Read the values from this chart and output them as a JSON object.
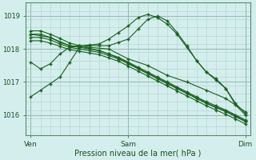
{
  "xlabel": "Pression niveau de la mer( hPa )",
  "bg_color": "#d4eeed",
  "grid_minor_color": "#b8d8d4",
  "grid_major_color": "#9abcb8",
  "line_color": "#1a6020",
  "tick_color": "#1a5020",
  "x_tick_labels": [
    "Ven",
    "Sam",
    "Dim"
  ],
  "x_tick_pos": [
    0,
    10,
    22
  ],
  "ylim": [
    1015.4,
    1019.4
  ],
  "yticks": [
    1016,
    1017,
    1018,
    1019
  ],
  "n_points": 23,
  "lines": [
    {
      "x": [
        0,
        1,
        2,
        3,
        4,
        5,
        6,
        7,
        8,
        9,
        10,
        11,
        12,
        13,
        14,
        15,
        16,
        17,
        18,
        19,
        20,
        21,
        22
      ],
      "y": [
        1016.55,
        1016.75,
        1016.95,
        1017.15,
        1017.6,
        1018.05,
        1018.1,
        1018.1,
        1018.1,
        1018.2,
        1018.3,
        1018.6,
        1018.9,
        1019.0,
        1018.85,
        1018.5,
        1018.1,
        1017.65,
        1017.3,
        1017.1,
        1016.8,
        1016.35,
        1016.05
      ]
    },
    {
      "x": [
        0,
        1,
        2,
        3,
        4,
        5,
        6,
        7,
        8,
        9,
        10,
        11,
        12,
        13,
        14,
        15,
        16,
        17,
        18,
        19,
        20,
        21,
        22
      ],
      "y": [
        1018.45,
        1018.45,
        1018.35,
        1018.2,
        1018.1,
        1018.05,
        1018.0,
        1017.95,
        1017.85,
        1017.75,
        1017.6,
        1017.45,
        1017.3,
        1017.15,
        1017.0,
        1016.85,
        1016.7,
        1016.55,
        1016.4,
        1016.28,
        1016.15,
        1016.0,
        1015.85
      ]
    },
    {
      "x": [
        0,
        1,
        2,
        3,
        4,
        5,
        6,
        7,
        8,
        9,
        10,
        11,
        12,
        13,
        14,
        15,
        16,
        17,
        18,
        19,
        20,
        21,
        22
      ],
      "y": [
        1018.35,
        1018.35,
        1018.28,
        1018.15,
        1018.05,
        1018.0,
        1017.95,
        1017.9,
        1017.8,
        1017.7,
        1017.55,
        1017.4,
        1017.25,
        1017.1,
        1016.95,
        1016.8,
        1016.65,
        1016.5,
        1016.35,
        1016.22,
        1016.1,
        1015.95,
        1015.8
      ]
    },
    {
      "x": [
        0,
        1,
        2,
        3,
        4,
        5,
        6,
        7,
        8,
        9,
        10,
        11,
        12,
        13,
        14,
        15,
        16,
        17,
        18,
        19,
        20,
        21,
        22
      ],
      "y": [
        1018.25,
        1018.25,
        1018.18,
        1018.08,
        1017.98,
        1017.93,
        1017.88,
        1017.83,
        1017.73,
        1017.63,
        1017.48,
        1017.33,
        1017.18,
        1017.03,
        1016.88,
        1016.73,
        1016.58,
        1016.43,
        1016.28,
        1016.15,
        1016.02,
        1015.88,
        1015.73
      ]
    },
    {
      "x": [
        0,
        1,
        2,
        3,
        4,
        5,
        6,
        7,
        8,
        9,
        10,
        11,
        12,
        13,
        14,
        15,
        16,
        17,
        18,
        19,
        20,
        21,
        22
      ],
      "y": [
        1018.55,
        1018.55,
        1018.45,
        1018.32,
        1018.18,
        1018.1,
        1018.02,
        1017.95,
        1017.85,
        1017.72,
        1017.58,
        1017.42,
        1017.27,
        1017.12,
        1016.97,
        1016.82,
        1016.67,
        1016.52,
        1016.37,
        1016.24,
        1016.12,
        1015.98,
        1015.82
      ]
    },
    {
      "x": [
        0,
        1,
        2,
        3,
        4,
        5,
        6,
        7,
        8,
        9,
        10,
        11,
        12,
        13,
        14,
        15,
        16,
        17,
        18,
        19,
        20,
        21,
        22
      ],
      "y": [
        1017.6,
        1017.4,
        1017.55,
        1017.85,
        1018.05,
        1018.1,
        1018.12,
        1018.15,
        1018.3,
        1018.5,
        1018.7,
        1018.95,
        1019.05,
        1018.95,
        1018.75,
        1018.45,
        1018.05,
        1017.65,
        1017.3,
        1017.05,
        1016.8,
        1016.3,
        1016.0
      ]
    },
    {
      "x": [
        0,
        2,
        4,
        6,
        8,
        10,
        12,
        14,
        16,
        18,
        20,
        22
      ],
      "y": [
        1018.45,
        1018.35,
        1018.1,
        1018.05,
        1018.0,
        1017.7,
        1017.5,
        1017.2,
        1017.0,
        1016.75,
        1016.5,
        1016.1
      ]
    }
  ]
}
